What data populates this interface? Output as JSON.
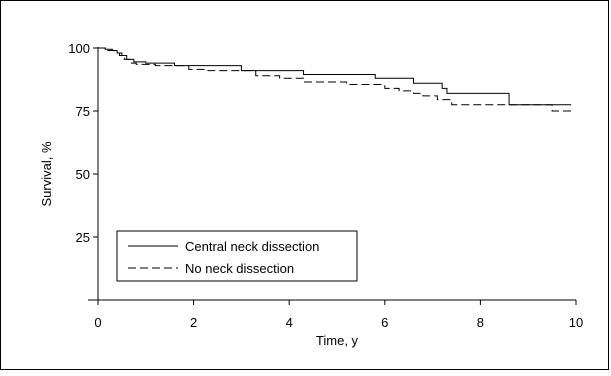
{
  "chart_data": {
    "type": "line",
    "step": true,
    "xlabel": "Time, y",
    "ylabel": "Survival, %",
    "xlim": [
      0,
      10
    ],
    "ylim": [
      0,
      100
    ],
    "xticks": [
      0,
      2,
      4,
      6,
      8,
      10
    ],
    "yticks": [
      25,
      50,
      75,
      100
    ],
    "grid": false,
    "legend_position": "bottom-left",
    "series": [
      {
        "name": "Central neck dissection",
        "line_style": "solid",
        "color": "#000000",
        "x": [
          0,
          0.15,
          0.3,
          0.4,
          0.5,
          0.6,
          0.75,
          1.0,
          1.6,
          3.0,
          4.3,
          5.8,
          6.6,
          7.2,
          7.3,
          8.6,
          9.9
        ],
        "y": [
          100,
          99.5,
          99,
          98,
          97,
          95.5,
          94.5,
          94,
          93,
          91,
          89.5,
          88,
          86,
          84,
          82,
          77.5,
          77.5
        ]
      },
      {
        "name": "No neck dissection",
        "line_style": "dashed",
        "color": "#000000",
        "x": [
          0,
          0.2,
          0.35,
          0.45,
          0.55,
          0.7,
          0.8,
          1.2,
          1.9,
          2.3,
          3.3,
          3.8,
          4.3,
          5.2,
          6.0,
          6.3,
          6.6,
          6.8,
          7.1,
          7.4,
          9.2,
          9.5,
          9.9
        ],
        "y": [
          100,
          99,
          98,
          97,
          95.5,
          94,
          93.5,
          93,
          91.5,
          91,
          89,
          88,
          86.5,
          85.5,
          84,
          83,
          82,
          81,
          79.5,
          77.5,
          77.5,
          75,
          75
        ]
      }
    ]
  }
}
